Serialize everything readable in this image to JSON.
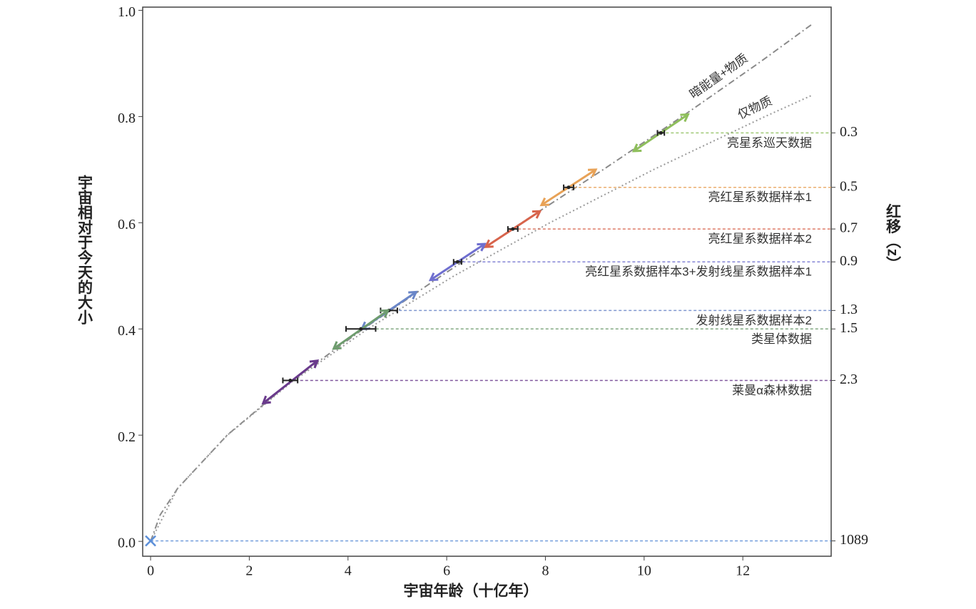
{
  "chart_data": {
    "type": "line",
    "xlabel": "宇宙年龄（十亿年）",
    "ylabel": "宇宙相对于今天的大小",
    "y2label": "红移（z）",
    "xlim": [
      -0.16,
      13.79
    ],
    "ylim": [
      -0.028,
      1.006
    ],
    "xticks": [
      0,
      2,
      4,
      6,
      8,
      10,
      12
    ],
    "yticks": [
      {
        "value": 0,
        "label": "0.0"
      },
      0.2,
      0.4,
      0.6,
      0.8,
      {
        "value": 1,
        "label": "1.0"
      }
    ],
    "y2scale": "redshift",
    "y2ticks": [
      0.3,
      0.5,
      0.7,
      0.9,
      1.3,
      1.5,
      2.3,
      1089
    ],
    "series": [
      {
        "name": "暗能量+物质",
        "color": "#8a8a8a",
        "dash": "dashdot",
        "x": [
          0,
          0.195,
          0.55,
          1.551,
          2.83,
          4.31,
          5.89,
          7.52,
          9.17,
          10.77,
          12.31,
          13.42
        ],
        "values": [
          0,
          0.05,
          0.1,
          0.2,
          0.3,
          0.4,
          0.5,
          0.6,
          0.7,
          0.8,
          0.9,
          0.975
        ]
      },
      {
        "name": "仅物质",
        "color": "#9a9a9a",
        "dash": "dotted",
        "x": [
          0,
          0.55,
          1.556,
          2.859,
          4.4,
          6.15,
          8.09,
          10.19,
          12.45,
          13.4
        ],
        "values": [
          0,
          0.1,
          0.2,
          0.3,
          0.4,
          0.5,
          0.6,
          0.7,
          0.8,
          0.84
        ]
      }
    ],
    "sample_names": [
      "亮星系巡天数据",
      "亮红星系数据样本1",
      "亮红星系数据样本2",
      "亮红星系数据样本3+发射线星系数据样本1",
      "发射线星系数据样本2",
      "类星体数据",
      "莱曼α森林数据",
      null
    ],
    "sample_ages": [
      10.34,
      8.47,
      7.34,
      6.22,
      4.83,
      4.26,
      2.83,
      0
    ],
    "sample_age_errors": [
      0.07,
      0.1,
      0.1,
      0.08,
      0.17,
      0.3,
      0.15,
      null
    ],
    "sample_colors": [
      "#8fbf5c",
      "#e8a257",
      "#d8644c",
      "#6f6fcf",
      "#6a86c8",
      "#6e9c6e",
      "#6a3a8c",
      "#5b8ed8"
    ]
  }
}
